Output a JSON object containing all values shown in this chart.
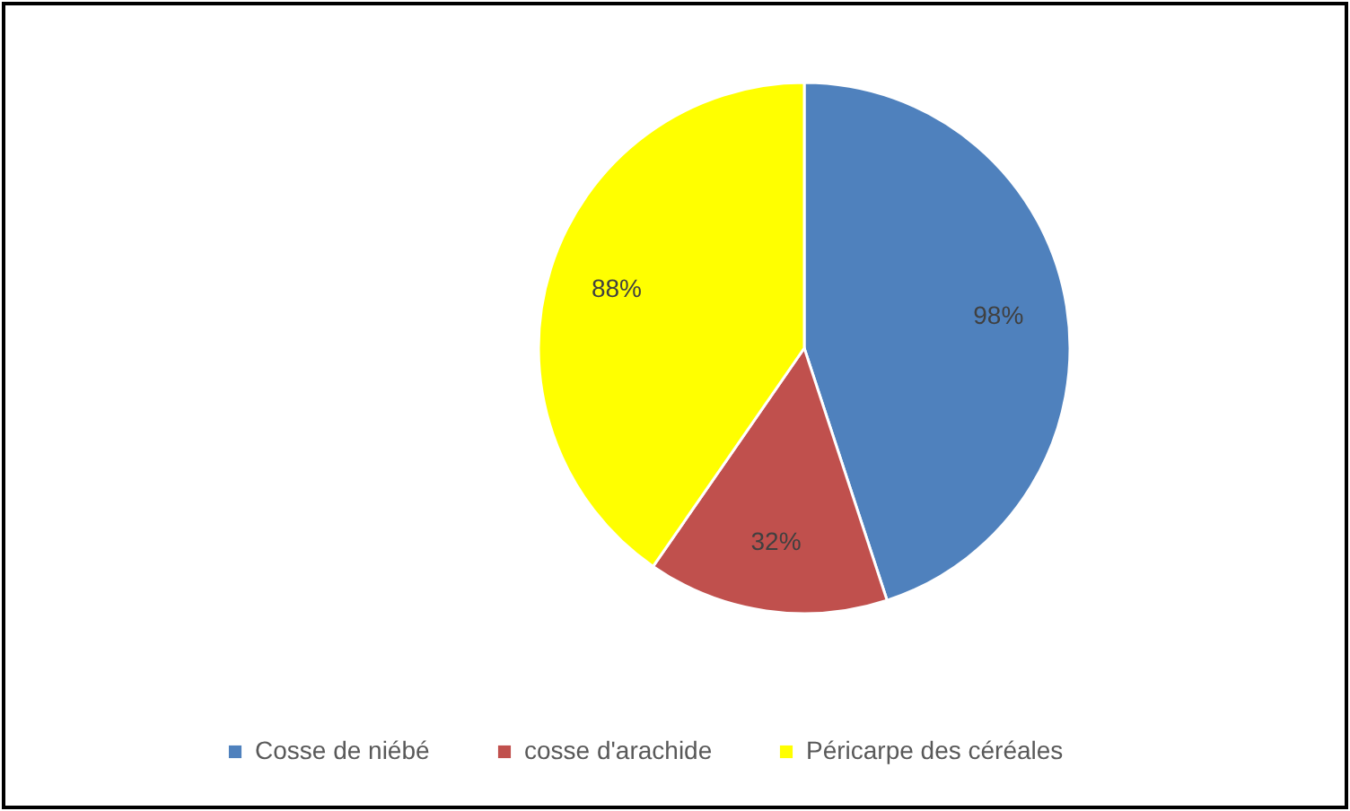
{
  "chart_data": {
    "type": "pie",
    "categories": [
      "Cosse de niébé",
      "cosse d'arachide",
      "Péricarpe des céréales"
    ],
    "values": [
      98,
      32,
      88
    ],
    "colors": [
      "#4f81bd",
      "#c0504d",
      "#ffff00"
    ],
    "value_labels": [
      "98%",
      "32%",
      "88%"
    ],
    "legend": "bottom"
  }
}
